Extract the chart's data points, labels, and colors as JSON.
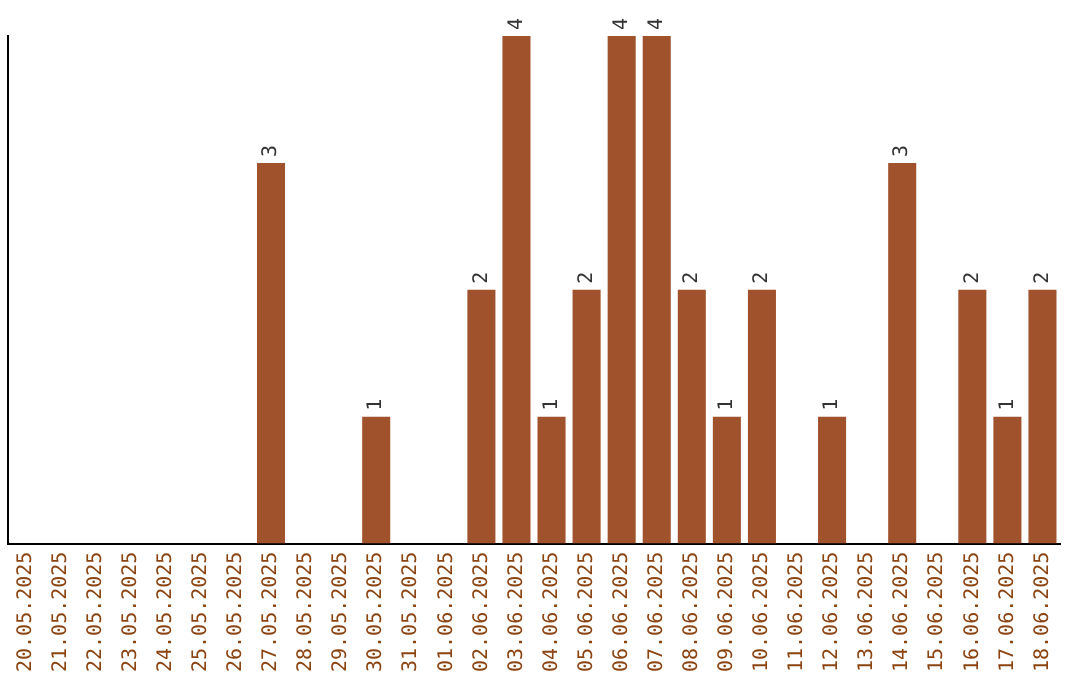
{
  "chart_data": {
    "type": "bar",
    "categories": [
      "20.05.2025",
      "21.05.2025",
      "22.05.2025",
      "23.05.2025",
      "24.05.2025",
      "25.05.2025",
      "26.05.2025",
      "27.05.2025",
      "28.05.2025",
      "29.05.2025",
      "30.05.2025",
      "31.05.2025",
      "01.06.2025",
      "02.06.2025",
      "03.06.2025",
      "04.06.2025",
      "05.06.2025",
      "06.06.2025",
      "07.06.2025",
      "08.06.2025",
      "09.06.2025",
      "10.06.2025",
      "11.06.2025",
      "12.06.2025",
      "13.06.2025",
      "14.06.2025",
      "15.06.2025",
      "16.06.2025",
      "17.06.2025",
      "18.06.2025"
    ],
    "values": [
      0,
      0,
      0,
      0,
      0,
      0,
      0,
      3,
      0,
      0,
      1,
      0,
      0,
      2,
      4,
      1,
      2,
      4,
      4,
      2,
      1,
      2,
      0,
      1,
      0,
      3,
      0,
      2,
      1,
      2
    ],
    "value_labels": [
      null,
      null,
      null,
      null,
      null,
      null,
      null,
      "3",
      null,
      null,
      "1",
      null,
      null,
      "2",
      "4",
      "1",
      "2",
      "4",
      "4",
      "2",
      "1",
      "2",
      null,
      "1",
      null,
      "3",
      null,
      "2",
      "1",
      "2"
    ],
    "color": "#a0522d",
    "grid": false,
    "legend": false,
    "tick_labels": "x"
  }
}
